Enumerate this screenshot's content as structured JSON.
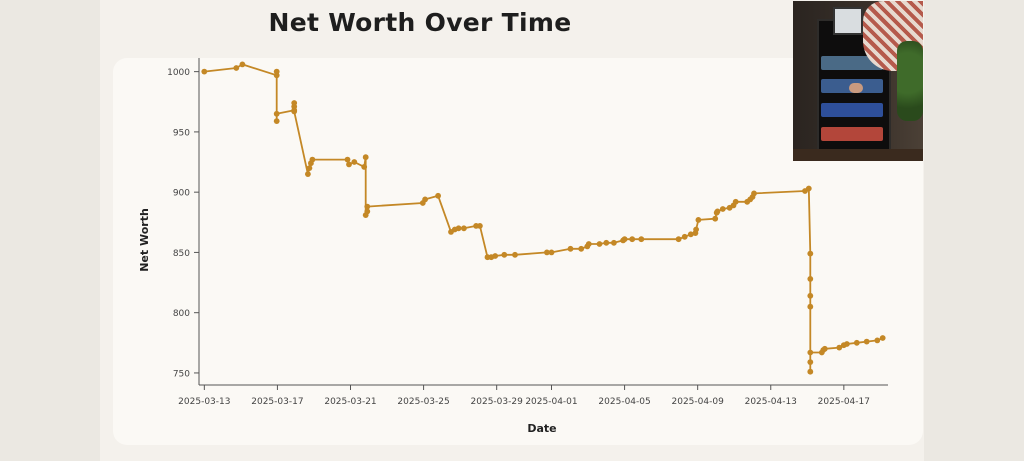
{
  "page": {
    "title": "Net Worth Over Time"
  },
  "photo": {
    "name": "inset-photo",
    "alt": ""
  },
  "colors": {
    "line": "#c48826",
    "axis": "#555555",
    "background": "#fbf9f5"
  },
  "chart_data": {
    "type": "line",
    "title": "Net Worth Over Time",
    "xlabel": "Date",
    "ylabel": "Net Worth",
    "xlim": [
      "2025-03-12T17:00",
      "2025-04-19T10:00"
    ],
    "ylim": [
      740,
      1008
    ],
    "yticks": [
      750,
      800,
      850,
      900,
      950,
      1000
    ],
    "xticks": [
      "2025-03-13",
      "2025-03-17",
      "2025-03-21",
      "2025-03-25",
      "2025-03-29",
      "2025-04-01",
      "2025-04-05",
      "2025-04-09",
      "2025-04-13",
      "2025-04-17"
    ],
    "grid": false,
    "legend": "none",
    "series": [
      {
        "points": [
          [
            "2025-03-13T00:00",
            1000
          ],
          [
            "2025-03-14T18:00",
            1003
          ],
          [
            "2025-03-15T02:00",
            1006
          ],
          [
            "2025-03-16T23:00",
            997
          ],
          [
            "2025-03-16T23:00",
            1000
          ],
          [
            "2025-03-16T23:00",
            959
          ],
          [
            "2025-03-16T23:00",
            965
          ],
          [
            "2025-03-17T22:00",
            968
          ],
          [
            "2025-03-17T22:00",
            974
          ],
          [
            "2025-03-17T22:00",
            971
          ],
          [
            "2025-03-17T22:00",
            967
          ],
          [
            "2025-03-18T16:00",
            915
          ],
          [
            "2025-03-18T18:00",
            920
          ],
          [
            "2025-03-18T20:00",
            924
          ],
          [
            "2025-03-18T22:00",
            927
          ],
          [
            "2025-03-20T20:00",
            927
          ],
          [
            "2025-03-20T22:00",
            923
          ],
          [
            "2025-03-21T05:00",
            925
          ],
          [
            "2025-03-21T18:00",
            921
          ],
          [
            "2025-03-21T20:00",
            929
          ],
          [
            "2025-03-21T20:00",
            881
          ],
          [
            "2025-03-21T22:00",
            884
          ],
          [
            "2025-03-21T22:00",
            888
          ],
          [
            "2025-03-24T23:00",
            891
          ],
          [
            "2025-03-25T02:00",
            894
          ],
          [
            "2025-03-25T19:00",
            897
          ],
          [
            "2025-03-26T12:00",
            867
          ],
          [
            "2025-03-26T17:00",
            869
          ],
          [
            "2025-03-26T22:00",
            870
          ],
          [
            "2025-03-27T05:00",
            870
          ],
          [
            "2025-03-27T21:00",
            872
          ],
          [
            "2025-03-28T02:00",
            872
          ],
          [
            "2025-03-28T12:00",
            846
          ],
          [
            "2025-03-28T17:00",
            846
          ],
          [
            "2025-03-28T22:00",
            847
          ],
          [
            "2025-03-29T10:00",
            848
          ],
          [
            "2025-03-30T00:00",
            848
          ],
          [
            "2025-03-31T18:00",
            850
          ],
          [
            "2025-04-01T00:00",
            850
          ],
          [
            "2025-04-02T01:00",
            853
          ],
          [
            "2025-04-02T15:00",
            853
          ],
          [
            "2025-04-02T23:00",
            855
          ],
          [
            "2025-04-03T01:00",
            857
          ],
          [
            "2025-04-03T15:00",
            857
          ],
          [
            "2025-04-04T00:00",
            858
          ],
          [
            "2025-04-04T10:00",
            858
          ],
          [
            "2025-04-04T22:00",
            860
          ],
          [
            "2025-04-05T00:00",
            861
          ],
          [
            "2025-04-05T10:00",
            861
          ],
          [
            "2025-04-05T22:00",
            861
          ],
          [
            "2025-04-07T23:00",
            861
          ],
          [
            "2025-04-08T07:00",
            863
          ],
          [
            "2025-04-08T15:00",
            865
          ],
          [
            "2025-04-08T21:00",
            866
          ],
          [
            "2025-04-08T22:00",
            869
          ],
          [
            "2025-04-09T01:00",
            877
          ],
          [
            "2025-04-09T23:00",
            878
          ],
          [
            "2025-04-10T01:00",
            883
          ],
          [
            "2025-04-10T02:00",
            884
          ],
          [
            "2025-04-10T09:00",
            886
          ],
          [
            "2025-04-10T18:00",
            887
          ],
          [
            "2025-04-10T23:00",
            889
          ],
          [
            "2025-04-11T02:00",
            892
          ],
          [
            "2025-04-11T17:00",
            892
          ],
          [
            "2025-04-11T21:00",
            894
          ],
          [
            "2025-04-12T00:00",
            896
          ],
          [
            "2025-04-12T02:00",
            899
          ],
          [
            "2025-04-14T21:00",
            901
          ],
          [
            "2025-04-15T02:00",
            903
          ],
          [
            "2025-04-15T04:00",
            849
          ],
          [
            "2025-04-15T04:00",
            828
          ],
          [
            "2025-04-15T04:00",
            814
          ],
          [
            "2025-04-15T04:00",
            805
          ],
          [
            "2025-04-15T04:00",
            759
          ],
          [
            "2025-04-15T04:00",
            751
          ],
          [
            "2025-04-15T04:00",
            767
          ],
          [
            "2025-04-15T19:00",
            767
          ],
          [
            "2025-04-15T21:00",
            769
          ],
          [
            "2025-04-15T23:00",
            770
          ],
          [
            "2025-04-16T18:00",
            771
          ],
          [
            "2025-04-17T00:00",
            773
          ],
          [
            "2025-04-17T04:00",
            774
          ],
          [
            "2025-04-17T17:00",
            775
          ],
          [
            "2025-04-18T06:00",
            776
          ],
          [
            "2025-04-18T20:00",
            777
          ],
          [
            "2025-04-19T03:00",
            779
          ]
        ]
      }
    ]
  }
}
